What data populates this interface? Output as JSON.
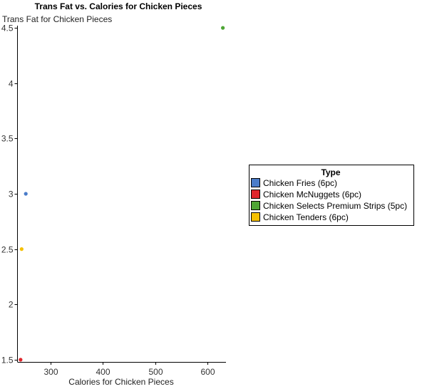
{
  "chart_data": {
    "type": "scatter",
    "title": "Trans Fat vs. Calories for Chicken Pieces",
    "xlabel": "Calories for Chicken Pieces",
    "ylabel": "Trans Fat for Chicken Pieces",
    "xlim": [
      236,
      636
    ],
    "ylim": [
      1.48,
      4.52
    ],
    "xticks": [
      300,
      400,
      500,
      600
    ],
    "yticks": [
      1.5,
      2,
      2.5,
      3,
      3.5,
      4,
      4.5
    ],
    "legend": {
      "title": "Type",
      "position": "right"
    },
    "series": [
      {
        "name": "Chicken Fries (6pc)",
        "color": "#4a7cc9",
        "points": [
          {
            "x": 252,
            "y": 3.0
          }
        ]
      },
      {
        "name": "Chicken McNuggets (6pc)",
        "color": "#e0262c",
        "points": [
          {
            "x": 242,
            "y": 1.5
          }
        ]
      },
      {
        "name": "Chicken Selects Premium Strips (5pc)",
        "color": "#4ea535",
        "points": [
          {
            "x": 630,
            "y": 4.5
          }
        ]
      },
      {
        "name": "Chicken Tenders (6pc)",
        "color": "#f5c000",
        "points": [
          {
            "x": 244,
            "y": 2.5
          }
        ]
      }
    ]
  }
}
